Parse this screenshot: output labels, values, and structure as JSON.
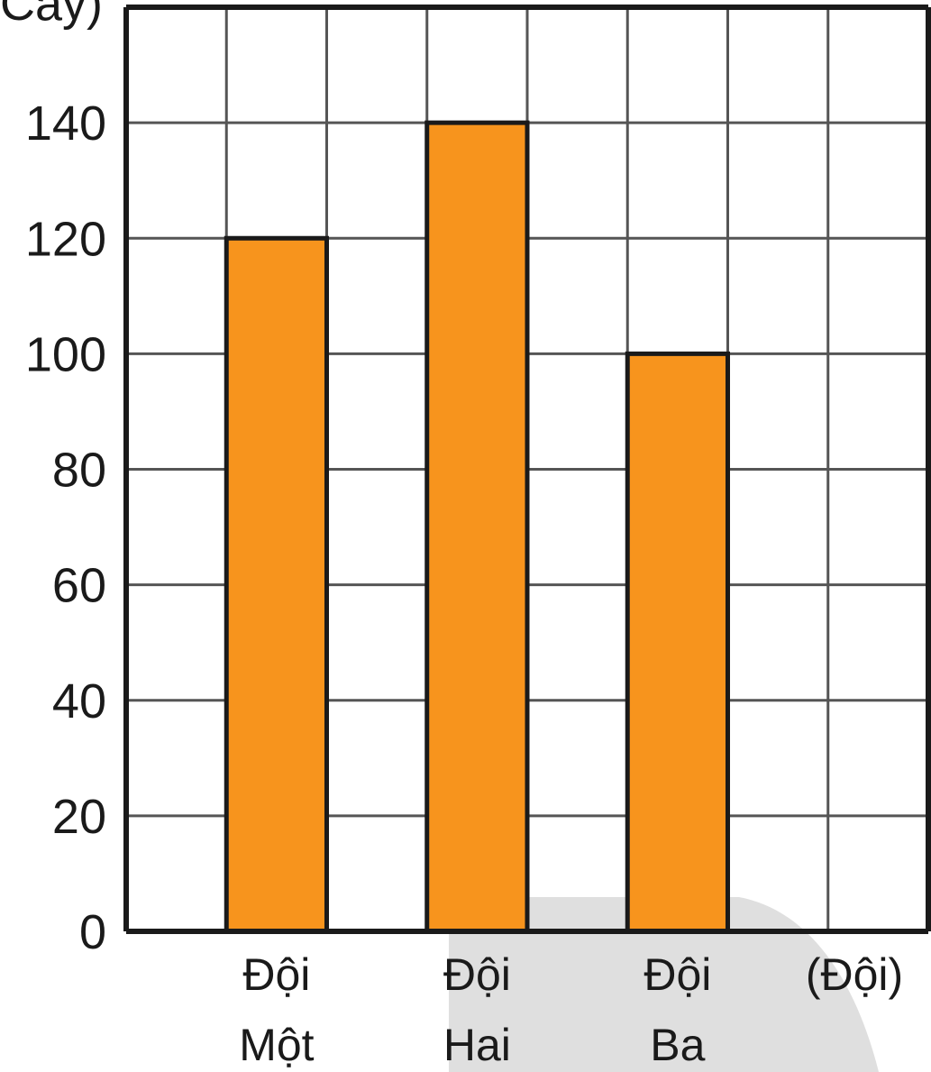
{
  "chart_data": {
    "type": "bar",
    "title": "",
    "ylabel": "(Cây)",
    "xlabel": "(Đội)",
    "categories": [
      {
        "line1": "Đội",
        "line2": "Một"
      },
      {
        "line1": "Đội",
        "line2": "Hai"
      },
      {
        "line1": "Đội",
        "line2": "Ba"
      }
    ],
    "values": [
      120,
      140,
      100
    ],
    "ylim": [
      0,
      160
    ],
    "yticks": [
      "0",
      "20",
      "40",
      "60",
      "80",
      "100",
      "120",
      "140"
    ],
    "grid": true,
    "colors": {
      "bar": "#F7941D",
      "bar_outline": "#1a1a1a",
      "grid": "#555555",
      "axis": "#1a1a1a",
      "watermark": "#d9d9d9"
    }
  }
}
